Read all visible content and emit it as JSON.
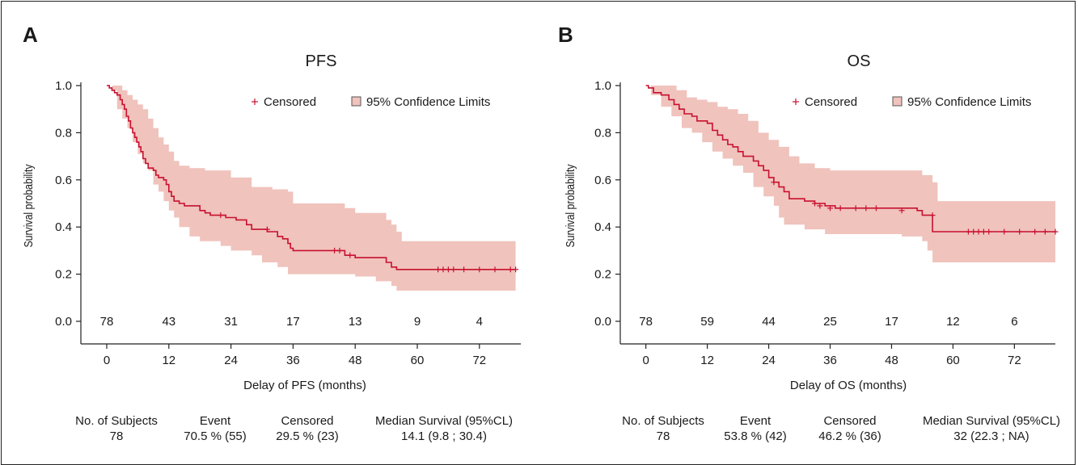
{
  "chart_data": [
    {
      "type": "line",
      "panel_label": "A",
      "title": "PFS",
      "xlabel": "Delay of PFS (months)",
      "ylabel": "Survival probability",
      "xlim": [
        -5,
        80
      ],
      "ylim": [
        0,
        1
      ],
      "xticks": [
        0,
        12,
        24,
        36,
        48,
        60,
        72
      ],
      "yticks": [
        "0.0",
        "0.2",
        "0.4",
        "0.6",
        "0.8",
        "1.0"
      ],
      "legend": {
        "position": "top-right",
        "entries": [
          "Censored",
          "95% Confidence Limits"
        ]
      },
      "colors": {
        "line": "#c8102e",
        "band": "#f0c3bd"
      },
      "at_risk": {
        "x": [
          0,
          12,
          24,
          36,
          48,
          60,
          72
        ],
        "values": [
          "78",
          "43",
          "31",
          "17",
          "13",
          "9",
          "4"
        ]
      },
      "series": [
        {
          "name": "Survival",
          "steps": [
            [
              0,
              1.0
            ],
            [
              0.5,
              0.99
            ],
            [
              1,
              0.98
            ],
            [
              1.5,
              0.97
            ],
            [
              2,
              0.96
            ],
            [
              2.6,
              0.94
            ],
            [
              3,
              0.92
            ],
            [
              3.4,
              0.9
            ],
            [
              3.8,
              0.87
            ],
            [
              4.2,
              0.85
            ],
            [
              4.6,
              0.82
            ],
            [
              5,
              0.8
            ],
            [
              5.4,
              0.78
            ],
            [
              5.8,
              0.76
            ],
            [
              6.2,
              0.74
            ],
            [
              6.6,
              0.72
            ],
            [
              7,
              0.69
            ],
            [
              7.5,
              0.67
            ],
            [
              8,
              0.65
            ],
            [
              9,
              0.64
            ],
            [
              9.5,
              0.62
            ],
            [
              10,
              0.61
            ],
            [
              11,
              0.6
            ],
            [
              11.5,
              0.58
            ],
            [
              12,
              0.55
            ],
            [
              12.5,
              0.53
            ],
            [
              13,
              0.51
            ],
            [
              14,
              0.5
            ],
            [
              15,
              0.49
            ],
            [
              18,
              0.47
            ],
            [
              19,
              0.46
            ],
            [
              20,
              0.45
            ],
            [
              23,
              0.44
            ],
            [
              25,
              0.43
            ],
            [
              27,
              0.41
            ],
            [
              28,
              0.39
            ],
            [
              30,
              0.39
            ],
            [
              31,
              0.38
            ],
            [
              33,
              0.36
            ],
            [
              34,
              0.35
            ],
            [
              35,
              0.33
            ],
            [
              35.5,
              0.31
            ],
            [
              36,
              0.3
            ],
            [
              46,
              0.28
            ],
            [
              48,
              0.27
            ],
            [
              54,
              0.25
            ],
            [
              55,
              0.23
            ],
            [
              56,
              0.22
            ],
            [
              79,
              0.22
            ]
          ],
          "censored": [
            [
              22,
              0.45
            ],
            [
              31,
              0.39
            ],
            [
              44,
              0.3
            ],
            [
              45,
              0.3
            ],
            [
              47,
              0.28
            ],
            [
              64,
              0.22
            ],
            [
              65,
              0.22
            ],
            [
              66,
              0.22
            ],
            [
              67,
              0.22
            ],
            [
              69,
              0.22
            ],
            [
              72,
              0.22
            ],
            [
              75,
              0.22
            ],
            [
              78,
              0.22
            ],
            [
              79,
              0.22
            ]
          ],
          "ci_upper": [
            [
              0,
              1.0
            ],
            [
              2,
              1.0
            ],
            [
              3,
              0.98
            ],
            [
              4,
              0.96
            ],
            [
              5,
              0.94
            ],
            [
              6,
              0.92
            ],
            [
              7,
              0.9
            ],
            [
              8,
              0.86
            ],
            [
              9,
              0.82
            ],
            [
              10,
              0.78
            ],
            [
              11,
              0.75
            ],
            [
              12,
              0.72
            ],
            [
              13,
              0.68
            ],
            [
              14,
              0.66
            ],
            [
              16,
              0.65
            ],
            [
              19,
              0.64
            ],
            [
              24,
              0.61
            ],
            [
              28,
              0.57
            ],
            [
              32,
              0.56
            ],
            [
              35,
              0.55
            ],
            [
              36,
              0.5
            ],
            [
              46,
              0.48
            ],
            [
              48,
              0.46
            ],
            [
              54,
              0.43
            ],
            [
              55,
              0.41
            ],
            [
              56,
              0.38
            ],
            [
              57,
              0.34
            ],
            [
              79,
              0.34
            ]
          ],
          "ci_lower": [
            [
              0,
              1.0
            ],
            [
              1,
              0.98
            ],
            [
              2,
              0.9
            ],
            [
              3,
              0.86
            ],
            [
              4,
              0.82
            ],
            [
              5,
              0.76
            ],
            [
              6,
              0.71
            ],
            [
              7,
              0.67
            ],
            [
              8,
              0.64
            ],
            [
              9,
              0.58
            ],
            [
              10,
              0.55
            ],
            [
              11,
              0.51
            ],
            [
              12,
              0.47
            ],
            [
              13,
              0.44
            ],
            [
              14,
              0.4
            ],
            [
              16,
              0.36
            ],
            [
              18,
              0.34
            ],
            [
              22,
              0.32
            ],
            [
              24,
              0.3
            ],
            [
              28,
              0.28
            ],
            [
              30,
              0.25
            ],
            [
              33,
              0.23
            ],
            [
              35,
              0.2
            ],
            [
              46,
              0.2
            ],
            [
              48,
              0.19
            ],
            [
              52,
              0.17
            ],
            [
              55,
              0.15
            ],
            [
              56,
              0.13
            ],
            [
              79,
              0.13
            ]
          ]
        }
      ],
      "summary": {
        "headers": [
          "No. of Subjects",
          "Event",
          "Censored",
          "Median Survival (95%CL)"
        ],
        "values": [
          "78",
          "70.5 % (55)",
          "29.5 % (23)",
          "14.1 (9.8 ; 30.4)"
        ]
      }
    },
    {
      "type": "line",
      "panel_label": "B",
      "title": "OS",
      "xlabel": "Delay of OS (months)",
      "ylabel": "Survival probability",
      "xlim": [
        -5,
        80
      ],
      "ylim": [
        0,
        1
      ],
      "xticks": [
        0,
        12,
        24,
        36,
        48,
        60,
        72
      ],
      "yticks": [
        "0.0",
        "0.2",
        "0.4",
        "0.6",
        "0.8",
        "1.0"
      ],
      "legend": {
        "position": "top-right",
        "entries": [
          "Censored",
          "95% Confidence Limits"
        ]
      },
      "colors": {
        "line": "#c8102e",
        "band": "#f0c3bd"
      },
      "at_risk": {
        "x": [
          0,
          12,
          24,
          36,
          48,
          60,
          72
        ],
        "values": [
          "78",
          "59",
          "44",
          "25",
          "17",
          "12",
          "6"
        ]
      },
      "series": [
        {
          "name": "Survival",
          "steps": [
            [
              0,
              1.0
            ],
            [
              0.5,
              0.99
            ],
            [
              1.5,
              0.97
            ],
            [
              3,
              0.96
            ],
            [
              4.5,
              0.94
            ],
            [
              5.5,
              0.92
            ],
            [
              6.5,
              0.9
            ],
            [
              7.5,
              0.88
            ],
            [
              9,
              0.87
            ],
            [
              10,
              0.85
            ],
            [
              12,
              0.84
            ],
            [
              13,
              0.81
            ],
            [
              14,
              0.79
            ],
            [
              15,
              0.77
            ],
            [
              16,
              0.75
            ],
            [
              17,
              0.74
            ],
            [
              18,
              0.72
            ],
            [
              19,
              0.7
            ],
            [
              21,
              0.68
            ],
            [
              22,
              0.66
            ],
            [
              23,
              0.64
            ],
            [
              24,
              0.61
            ],
            [
              25,
              0.59
            ],
            [
              26,
              0.57
            ],
            [
              27,
              0.55
            ],
            [
              28,
              0.52
            ],
            [
              31,
              0.51
            ],
            [
              33,
              0.5
            ],
            [
              35,
              0.49
            ],
            [
              37,
              0.48
            ],
            [
              53,
              0.47
            ],
            [
              54,
              0.45
            ],
            [
              56,
              0.38
            ],
            [
              80,
              0.38
            ]
          ],
          "censored": [
            [
              25,
              0.59
            ],
            [
              33,
              0.5
            ],
            [
              34,
              0.49
            ],
            [
              36,
              0.48
            ],
            [
              38,
              0.48
            ],
            [
              41,
              0.48
            ],
            [
              43,
              0.48
            ],
            [
              45,
              0.48
            ],
            [
              50,
              0.47
            ],
            [
              56,
              0.45
            ],
            [
              63,
              0.38
            ],
            [
              64,
              0.38
            ],
            [
              65,
              0.38
            ],
            [
              66,
              0.38
            ],
            [
              67,
              0.38
            ],
            [
              70,
              0.38
            ],
            [
              73,
              0.38
            ],
            [
              76,
              0.38
            ],
            [
              78,
              0.38
            ],
            [
              80,
              0.38
            ]
          ],
          "ci_upper": [
            [
              0,
              1.0
            ],
            [
              5,
              1.0
            ],
            [
              6,
              0.98
            ],
            [
              8,
              0.95
            ],
            [
              10,
              0.94
            ],
            [
              12,
              0.93
            ],
            [
              14,
              0.91
            ],
            [
              16,
              0.9
            ],
            [
              18,
              0.88
            ],
            [
              20,
              0.85
            ],
            [
              22,
              0.8
            ],
            [
              24,
              0.77
            ],
            [
              26,
              0.74
            ],
            [
              28,
              0.7
            ],
            [
              30,
              0.67
            ],
            [
              33,
              0.65
            ],
            [
              36,
              0.64
            ],
            [
              54,
              0.62
            ],
            [
              56,
              0.59
            ],
            [
              57,
              0.51
            ],
            [
              80,
              0.51
            ]
          ],
          "ci_lower": [
            [
              0,
              1.0
            ],
            [
              1,
              0.96
            ],
            [
              3,
              0.91
            ],
            [
              5,
              0.87
            ],
            [
              7,
              0.82
            ],
            [
              9,
              0.8
            ],
            [
              11,
              0.76
            ],
            [
              13,
              0.72
            ],
            [
              15,
              0.69
            ],
            [
              17,
              0.66
            ],
            [
              19,
              0.63
            ],
            [
              21,
              0.57
            ],
            [
              23,
              0.53
            ],
            [
              25,
              0.49
            ],
            [
              26,
              0.44
            ],
            [
              27,
              0.41
            ],
            [
              31,
              0.39
            ],
            [
              35,
              0.37
            ],
            [
              50,
              0.36
            ],
            [
              54,
              0.34
            ],
            [
              55,
              0.3
            ],
            [
              56,
              0.25
            ],
            [
              80,
              0.25
            ]
          ]
        }
      ],
      "summary": {
        "headers": [
          "No. of Subjects",
          "Event",
          "Censored",
          "Median Survival (95%CL)"
        ],
        "values": [
          "78",
          "53.8 % (42)",
          "46.2 % (36)",
          "32 (22.3 ; NA)"
        ]
      }
    }
  ]
}
